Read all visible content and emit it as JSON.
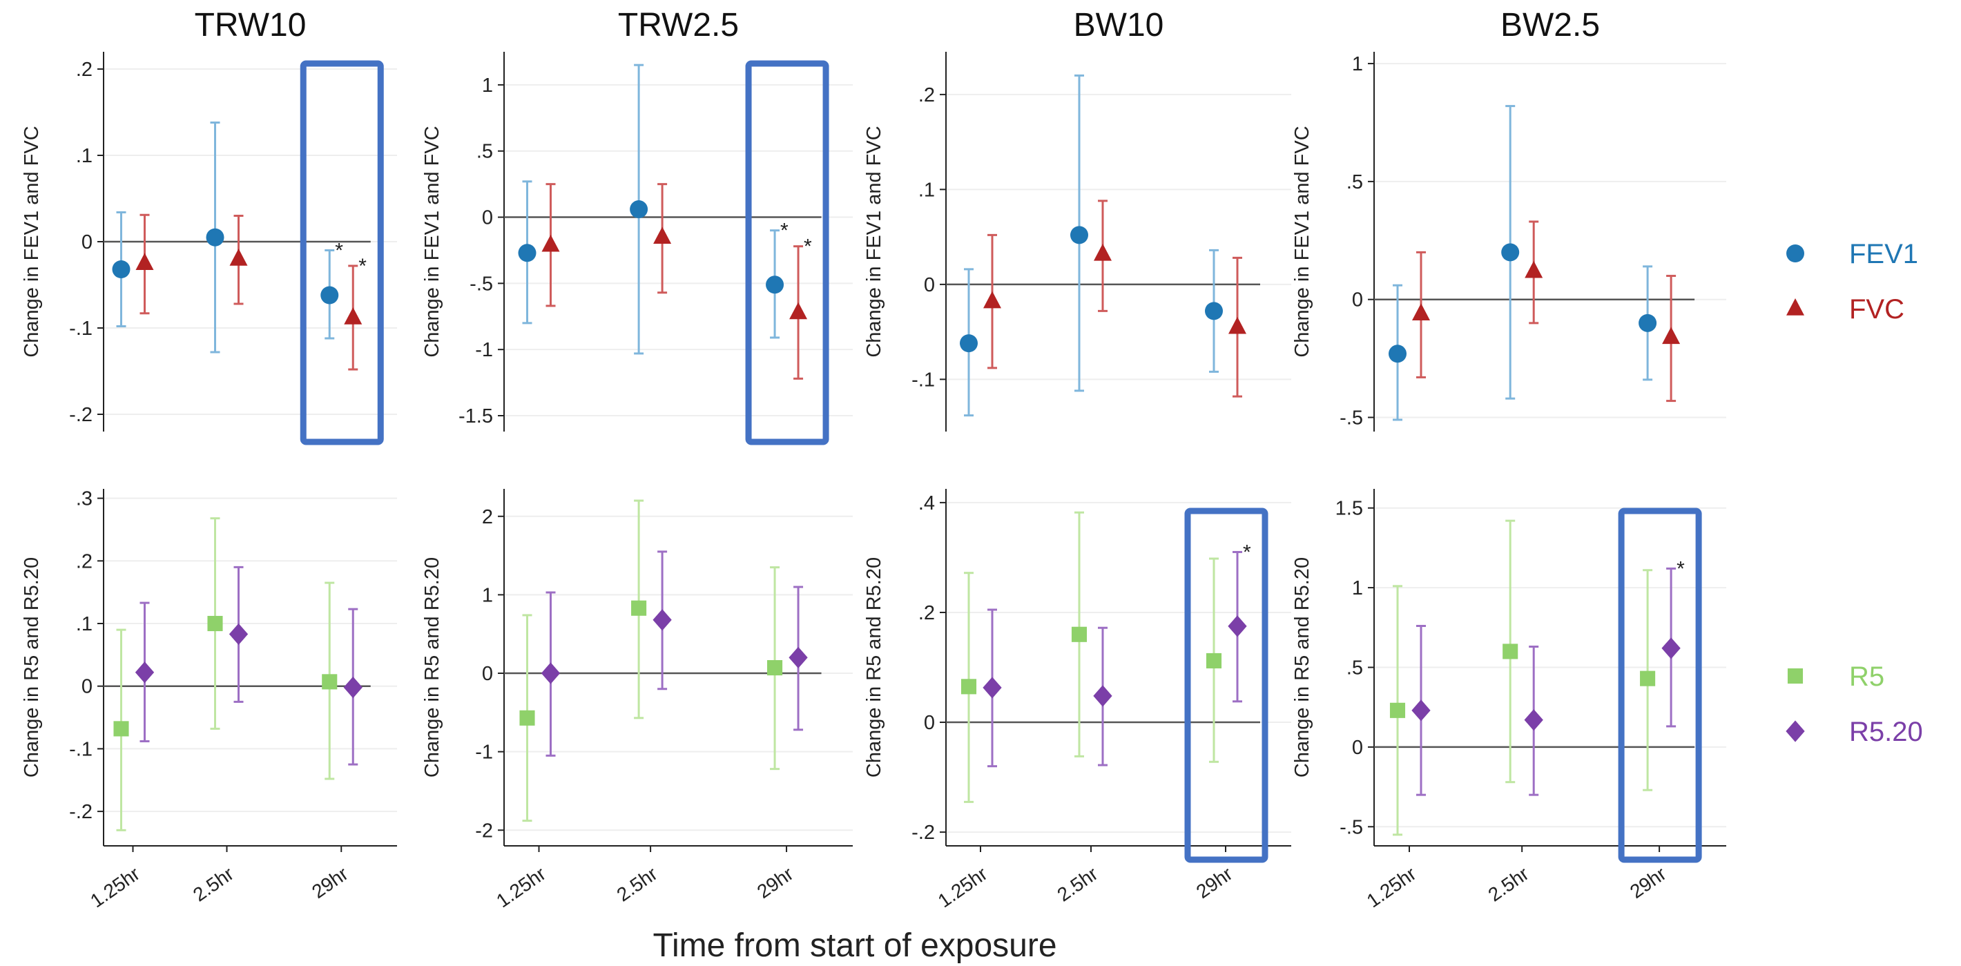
{
  "x_axis_label": "Time from start of exposure",
  "colors": {
    "FEV1": "#1f77b4",
    "FVC": "#b22222",
    "R5": "#8fd16a",
    "R5.20": "#7b3fa8",
    "ci_FEV1": "#7fb6dc",
    "ci_FVC": "#cf5b5b",
    "ci_R5": "#bfe6a2",
    "ci_R5.20": "#9d6fc4",
    "highlight": "#4472c4",
    "axis": "#222222",
    "grid": "#eeeeee"
  },
  "legend_top": [
    {
      "label": "FEV1",
      "marker": "circle",
      "color": "#1f77b4"
    },
    {
      "label": "FVC",
      "marker": "triangle",
      "color": "#b22222"
    }
  ],
  "legend_bottom": [
    {
      "label": "R5",
      "marker": "square",
      "color": "#8fd16a"
    },
    {
      "label": "R5.20",
      "marker": "diamond",
      "color": "#7b3fa8"
    }
  ],
  "chart_data": [
    {
      "type": "scatter",
      "title": "TRW10",
      "ylabel": "Change in FEV1 and FVC",
      "categories": [
        "1.25hr",
        "2.5hr",
        "29hr"
      ],
      "ylim": [
        -0.22,
        0.22
      ],
      "yticks": [
        -0.2,
        -0.1,
        0,
        0.1,
        0.2
      ],
      "yticklabels": [
        "-.2",
        "-.1",
        "0",
        ".1",
        ".2"
      ],
      "grid": true,
      "highlight_category": "29hr",
      "series": [
        {
          "name": "FEV1",
          "marker": "circle",
          "values": [
            -0.032,
            0.005,
            -0.062
          ],
          "ci_low": [
            -0.098,
            -0.128,
            -0.112
          ],
          "ci_high": [
            0.034,
            0.138,
            -0.01
          ],
          "significant": [
            false,
            false,
            true
          ]
        },
        {
          "name": "FVC",
          "marker": "triangle",
          "values": [
            -0.025,
            -0.02,
            -0.088
          ],
          "ci_low": [
            -0.083,
            -0.072,
            -0.148
          ],
          "ci_high": [
            0.031,
            0.03,
            -0.028
          ],
          "significant": [
            false,
            false,
            true
          ]
        }
      ]
    },
    {
      "type": "scatter",
      "title": "TRW2.5",
      "ylabel": "Change in FEV1 and FVC",
      "categories": [
        "1.25hr",
        "2.5hr",
        "29hr"
      ],
      "ylim": [
        -1.62,
        1.25
      ],
      "yticks": [
        -1.5,
        -1,
        -0.5,
        0,
        0.5,
        1
      ],
      "yticklabels": [
        "-1.5",
        "-1",
        "-.5",
        "0",
        ".5",
        "1"
      ],
      "grid": true,
      "highlight_category": "29hr",
      "series": [
        {
          "name": "FEV1",
          "marker": "circle",
          "values": [
            -0.27,
            0.06,
            -0.51
          ],
          "ci_low": [
            -0.8,
            -1.03,
            -0.91
          ],
          "ci_high": [
            0.27,
            1.15,
            -0.1
          ],
          "significant": [
            false,
            false,
            true
          ]
        },
        {
          "name": "FVC",
          "marker": "triangle",
          "values": [
            -0.21,
            -0.15,
            -0.72
          ],
          "ci_low": [
            -0.67,
            -0.57,
            -1.22
          ],
          "ci_high": [
            0.25,
            0.25,
            -0.22
          ],
          "significant": [
            false,
            false,
            true
          ]
        }
      ]
    },
    {
      "type": "scatter",
      "title": "BW10",
      "ylabel": "Change in FEV1 and FVC",
      "categories": [
        "1.25hr",
        "2.5hr",
        "29hr"
      ],
      "ylim": [
        -0.155,
        0.245
      ],
      "yticks": [
        -0.1,
        0,
        0.1,
        0.2
      ],
      "yticklabels": [
        "-.1",
        "0",
        ".1",
        ".2"
      ],
      "grid": true,
      "highlight_category": null,
      "series": [
        {
          "name": "FEV1",
          "marker": "circle",
          "values": [
            -0.062,
            0.052,
            -0.028
          ],
          "ci_low": [
            -0.138,
            -0.112,
            -0.092
          ],
          "ci_high": [
            0.016,
            0.22,
            0.036
          ],
          "significant": [
            false,
            false,
            false
          ]
        },
        {
          "name": "FVC",
          "marker": "triangle",
          "values": [
            -0.018,
            0.032,
            -0.045
          ],
          "ci_low": [
            -0.088,
            -0.028,
            -0.118
          ],
          "ci_high": [
            0.052,
            0.088,
            0.028
          ],
          "significant": [
            false,
            false,
            false
          ]
        }
      ]
    },
    {
      "type": "scatter",
      "title": "BW2.5",
      "ylabel": "Change in FEV1 and FVC",
      "categories": [
        "1.25hr",
        "2.5hr",
        "29hr"
      ],
      "ylim": [
        -0.56,
        1.05
      ],
      "yticks": [
        -0.5,
        0,
        0.5,
        1
      ],
      "yticklabels": [
        "-.5",
        "0",
        ".5",
        "1"
      ],
      "grid": true,
      "highlight_category": null,
      "series": [
        {
          "name": "FEV1",
          "marker": "circle",
          "values": [
            -0.23,
            0.2,
            -0.1
          ],
          "ci_low": [
            -0.51,
            -0.42,
            -0.34
          ],
          "ci_high": [
            0.06,
            0.82,
            0.14
          ],
          "significant": [
            false,
            false,
            false
          ]
        },
        {
          "name": "FVC",
          "marker": "triangle",
          "values": [
            -0.06,
            0.12,
            -0.16
          ],
          "ci_low": [
            -0.33,
            -0.1,
            -0.43
          ],
          "ci_high": [
            0.2,
            0.33,
            0.1
          ],
          "significant": [
            false,
            false,
            false
          ]
        }
      ]
    },
    {
      "type": "scatter",
      "title": "",
      "ylabel": "Change in R5 and R5.20",
      "categories": [
        "1.25hr",
        "2.5hr",
        "29hr"
      ],
      "ylim": [
        -0.255,
        0.315
      ],
      "yticks": [
        -0.2,
        -0.1,
        0,
        0.1,
        0.2,
        0.3
      ],
      "yticklabels": [
        "-.2",
        "-.1",
        "0",
        ".1",
        ".2",
        ".3"
      ],
      "grid": true,
      "highlight_category": null,
      "series": [
        {
          "name": "R5",
          "marker": "square",
          "values": [
            -0.068,
            0.1,
            0.007
          ],
          "ci_low": [
            -0.23,
            -0.068,
            -0.148
          ],
          "ci_high": [
            0.09,
            0.268,
            0.165
          ],
          "significant": [
            false,
            false,
            false
          ]
        },
        {
          "name": "R5.20",
          "marker": "diamond",
          "values": [
            0.022,
            0.083,
            -0.002
          ],
          "ci_low": [
            -0.088,
            -0.025,
            -0.125
          ],
          "ci_high": [
            0.133,
            0.19,
            0.123
          ],
          "significant": [
            false,
            false,
            false
          ]
        }
      ]
    },
    {
      "type": "scatter",
      "title": "",
      "ylabel": "Change in R5 and R5.20",
      "categories": [
        "1.25hr",
        "2.5hr",
        "29hr"
      ],
      "ylim": [
        -2.2,
        2.35
      ],
      "yticks": [
        -2,
        -1,
        0,
        1,
        2
      ],
      "yticklabels": [
        "-2",
        "-1",
        "0",
        "1",
        "2"
      ],
      "grid": true,
      "highlight_category": null,
      "series": [
        {
          "name": "R5",
          "marker": "square",
          "values": [
            -0.57,
            0.83,
            0.07
          ],
          "ci_low": [
            -1.88,
            -0.57,
            -1.22
          ],
          "ci_high": [
            0.74,
            2.2,
            1.35
          ],
          "significant": [
            false,
            false,
            false
          ]
        },
        {
          "name": "R5.20",
          "marker": "diamond",
          "values": [
            0.0,
            0.68,
            0.2
          ],
          "ci_low": [
            -1.05,
            -0.2,
            -0.72
          ],
          "ci_high": [
            1.03,
            1.55,
            1.1
          ],
          "significant": [
            false,
            false,
            false
          ]
        }
      ]
    },
    {
      "type": "scatter",
      "title": "",
      "ylabel": "Change in R5 and R5.20",
      "categories": [
        "1.25hr",
        "2.5hr",
        "29hr"
      ],
      "ylim": [
        -0.225,
        0.425
      ],
      "yticks": [
        -0.2,
        0,
        0.2,
        0.4
      ],
      "yticklabels": [
        "-.2",
        "0",
        ".2",
        ".4"
      ],
      "grid": true,
      "highlight_category": "29hr",
      "series": [
        {
          "name": "R5",
          "marker": "square",
          "values": [
            0.065,
            0.16,
            0.112
          ],
          "ci_low": [
            -0.145,
            -0.062,
            -0.072
          ],
          "ci_high": [
            0.272,
            0.382,
            0.298
          ],
          "significant": [
            false,
            false,
            false
          ]
        },
        {
          "name": "R5.20",
          "marker": "diamond",
          "values": [
            0.063,
            0.048,
            0.175
          ],
          "ci_low": [
            -0.08,
            -0.078,
            0.038
          ],
          "ci_high": [
            0.205,
            0.172,
            0.31
          ],
          "significant": [
            false,
            false,
            true
          ]
        }
      ]
    },
    {
      "type": "scatter",
      "title": "",
      "ylabel": "Change in R5 and R5.20",
      "categories": [
        "1.25hr",
        "2.5hr",
        "29hr"
      ],
      "ylim": [
        -0.62,
        1.62
      ],
      "yticks": [
        -0.5,
        0,
        0.5,
        1,
        1.5
      ],
      "yticklabels": [
        "-.5",
        "0",
        ".5",
        "1",
        "1.5"
      ],
      "grid": true,
      "highlight_category": "29hr",
      "series": [
        {
          "name": "R5",
          "marker": "square",
          "values": [
            0.23,
            0.6,
            0.43
          ],
          "ci_low": [
            -0.55,
            -0.22,
            -0.27
          ],
          "ci_high": [
            1.01,
            1.42,
            1.11
          ],
          "significant": [
            false,
            false,
            false
          ]
        },
        {
          "name": "R5.20",
          "marker": "diamond",
          "values": [
            0.23,
            0.17,
            0.62
          ],
          "ci_low": [
            -0.3,
            -0.3,
            0.13
          ],
          "ci_high": [
            0.76,
            0.63,
            1.12
          ],
          "significant": [
            false,
            false,
            true
          ]
        }
      ]
    }
  ]
}
